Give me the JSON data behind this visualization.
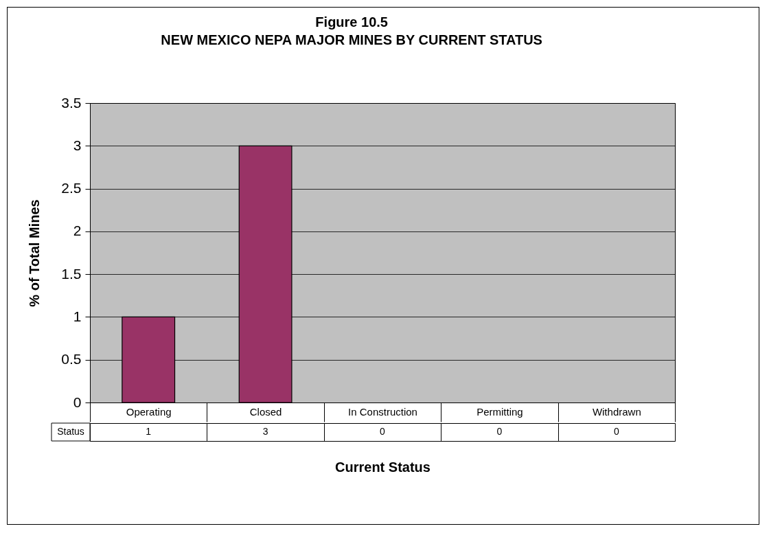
{
  "chart_data": {
    "type": "bar",
    "title": "Figure 10.5",
    "subtitle": "NEW MEXICO NEPA MAJOR MINES BY CURRENT STATUS",
    "xlabel": "Current Status",
    "ylabel": "% of Total Mines",
    "categories": [
      "Operating",
      "Closed",
      "In Construction",
      "Permitting",
      "Withdrawn"
    ],
    "series": [
      {
        "name": "Status",
        "color": "#993366",
        "values": [
          1,
          3,
          0,
          0,
          0
        ]
      }
    ],
    "ylim": [
      0,
      3.5
    ],
    "yticks": [
      {
        "value": 0,
        "label": "0"
      },
      0.5,
      {
        "value": 1,
        "label": "1"
      },
      1.5,
      {
        "value": 2,
        "label": "2"
      },
      2.5,
      {
        "value": 3,
        "label": "3"
      },
      3.5
    ],
    "grid": "y",
    "legend": "bottom",
    "data_labels": true
  }
}
